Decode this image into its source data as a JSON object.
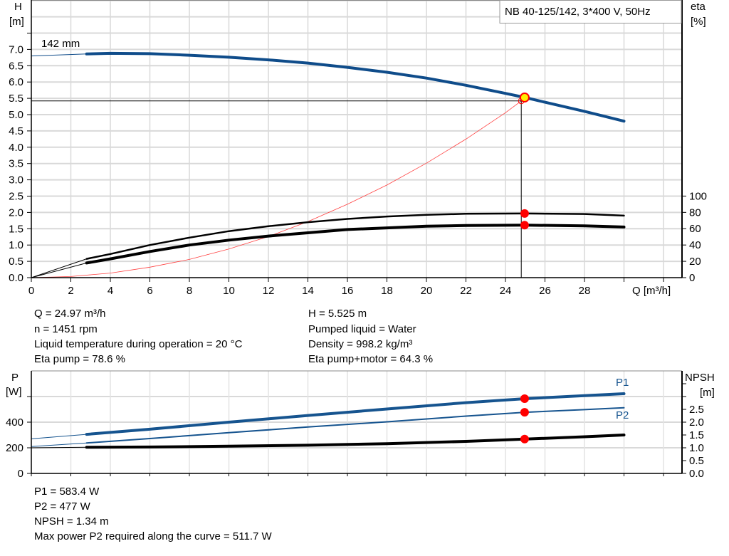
{
  "colors": {
    "head_curve": "#0f4c8a",
    "power_curve": "#16548f",
    "efficiency_curve": "#000000",
    "system_curve": "#ff4040",
    "duty_point": "#ffee00",
    "marker": "#ff0000",
    "grid": "#d9d9d9"
  },
  "legend": {
    "text": "NB 40-125/142, 3*400 V, 50Hz"
  },
  "chart_data": [
    {
      "type": "line",
      "x_label": "Q [m³/h]",
      "x_ticks": [
        "0",
        "2",
        "4",
        "6",
        "8",
        "10",
        "12",
        "14",
        "16",
        "18",
        "20",
        "22",
        "24",
        "26",
        "28"
      ],
      "xlim": [
        0,
        32
      ],
      "y_left": {
        "label_1": "H",
        "label_2": "[m]",
        "ylim": [
          0,
          8.5
        ],
        "ticks": [
          "0.0",
          "0.5",
          "1.0",
          "1.5",
          "2.0",
          "2.5",
          "3.0",
          "3.5",
          "4.0",
          "4.5",
          "5.0",
          "5.5",
          "6.0",
          "6.5",
          "7.0"
        ]
      },
      "y_right": {
        "label_1": "eta",
        "label_2": "[%]",
        "ylim": [
          0,
          340
        ],
        "ticks": [
          "0",
          "20",
          "40",
          "60",
          "80",
          "100"
        ]
      },
      "grid": true,
      "impeller_label": "142 mm",
      "series": [
        {
          "key": "head",
          "axis": "left",
          "x": [
            0,
            2.8,
            4,
            6,
            8,
            10,
            12,
            14,
            16,
            18,
            20,
            22,
            24,
            25,
            26,
            28,
            30
          ],
          "y": [
            6.8,
            6.86,
            6.88,
            6.87,
            6.82,
            6.76,
            6.68,
            6.58,
            6.45,
            6.3,
            6.12,
            5.9,
            5.65,
            5.525,
            5.38,
            5.1,
            4.8
          ]
        },
        {
          "key": "eta_pump",
          "axis": "right",
          "x": [
            0,
            2.8,
            4,
            6,
            8,
            10,
            12,
            14,
            16,
            18,
            20,
            22,
            25,
            28,
            30
          ],
          "y": [
            0,
            23,
            29,
            40,
            49,
            57,
            63,
            68,
            72,
            75,
            77,
            78.3,
            78.6,
            78,
            76
          ]
        },
        {
          "key": "eta_pump_motor",
          "axis": "right",
          "x": [
            0,
            2.8,
            4,
            6,
            8,
            10,
            12,
            14,
            16,
            18,
            20,
            22,
            25,
            28,
            30
          ],
          "y": [
            0,
            18,
            23,
            32,
            40,
            46,
            51,
            55,
            59,
            61,
            63,
            64,
            64.3,
            63.5,
            62
          ]
        },
        {
          "key": "system",
          "axis": "left",
          "x": [
            0,
            2,
            4,
            6,
            8,
            10,
            12,
            14,
            16,
            18,
            20,
            22,
            24,
            24.8
          ],
          "y": [
            0,
            0.035,
            0.14,
            0.32,
            0.56,
            0.88,
            1.26,
            1.72,
            2.25,
            2.84,
            3.51,
            4.25,
            5.06,
            5.42
          ]
        }
      ],
      "duty_point": {
        "q": 24.97,
        "h": 5.525,
        "eta_pump": 78.6,
        "eta_pump_motor": 64.3
      },
      "crosshair": {
        "q": 24.8,
        "h": 5.42
      }
    },
    {
      "type": "line",
      "xlim": [
        0,
        32
      ],
      "y_left": {
        "label_1": "P",
        "label_2": "[W]",
        "ylim": [
          0,
          800
        ],
        "ticks": [
          "0",
          "200",
          "400"
        ]
      },
      "y_right": {
        "label_1": "NPSH",
        "label_2": "[m]",
        "ylim": [
          0,
          4
        ],
        "ticks": [
          "0.0",
          "0.5",
          "1.0",
          "1.5",
          "2.0",
          "2.5"
        ]
      },
      "grid": true,
      "series": [
        {
          "key": "P1",
          "name": "P1",
          "axis": "left",
          "x": [
            0,
            2.8,
            6,
            10,
            14,
            18,
            22,
            25,
            28,
            30
          ],
          "y": [
            270,
            305,
            345,
            400,
            452,
            503,
            552,
            583.4,
            607,
            622
          ]
        },
        {
          "key": "P2",
          "name": "P2",
          "axis": "left",
          "x": [
            0,
            2.8,
            6,
            10,
            14,
            18,
            22,
            25,
            28,
            30
          ],
          "y": [
            210,
            238,
            272,
            318,
            362,
            403,
            447,
            477,
            498,
            512
          ]
        },
        {
          "key": "NPSH",
          "axis": "right",
          "x": [
            0,
            2.8,
            6,
            10,
            14,
            18,
            22,
            25,
            28,
            30
          ],
          "y": [
            1.0,
            1.02,
            1.03,
            1.06,
            1.1,
            1.16,
            1.25,
            1.34,
            1.43,
            1.5
          ]
        }
      ],
      "duty_point": {
        "p1": 583.4,
        "p2": 477,
        "npsh": 1.34
      }
    }
  ],
  "info": {
    "left": [
      "Q = 24.97 m³/h",
      "n = 1451 rpm",
      "Liquid temperature during operation = 20 °C",
      "Eta pump = 78.6 %"
    ],
    "right": [
      "H = 5.525 m",
      "Pumped liquid = Water",
      "Density = 998.2 kg/m³",
      "Eta pump+motor = 64.3 %"
    ],
    "bottom": [
      "P1 = 583.4 W",
      "P2 = 477 W",
      "NPSH = 1.34 m",
      "Max power P2 required along the curve = 511.7 W"
    ]
  }
}
